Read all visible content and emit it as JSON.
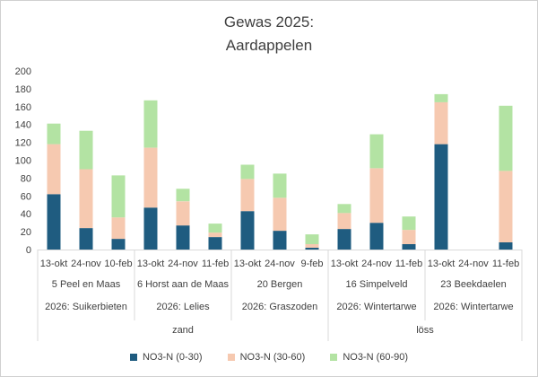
{
  "chart_data": {
    "type": "bar",
    "stacked": true,
    "title_lines": [
      "Gewas 2025:",
      "Aardappelen"
    ],
    "ylim": [
      0,
      200
    ],
    "yticks": [
      0,
      20,
      40,
      60,
      80,
      100,
      120,
      140,
      160,
      180,
      200
    ],
    "categories": [
      "13-okt",
      "24-nov",
      "10-feb",
      "13-okt",
      "24-nov",
      "11-feb",
      "13-okt",
      "24-nov",
      "9-feb",
      "13-okt",
      "24-nov",
      "11-feb",
      "13-okt",
      "24-nov",
      "11-feb"
    ],
    "groups": [
      {
        "location": "5 Peel en Maas",
        "crop": "2026: Suikerbieten"
      },
      {
        "location": "6 Horst aan de Maas",
        "crop": "2026: Lelies"
      },
      {
        "location": "20 Bergen",
        "crop": "2026: Graszoden"
      },
      {
        "location": "16 Simpelveld",
        "crop": "2026: Wintertarwe"
      },
      {
        "location": "23 Beekdaelen",
        "crop": "2026: Wintertarwe"
      }
    ],
    "soil_groups": [
      {
        "label": "zand",
        "group_count": 3
      },
      {
        "label": "löss",
        "group_count": 2
      }
    ],
    "series": [
      {
        "name": "NO3-N (0-30)",
        "color": "#1f5c80",
        "values": [
          62,
          24,
          12,
          47,
          27,
          14,
          43,
          21,
          2,
          23,
          30,
          6,
          118,
          0,
          8
        ]
      },
      {
        "name": "NO3-N (30-60)",
        "color": "#f6c9b0",
        "values": [
          56,
          66,
          24,
          67,
          27,
          5,
          36,
          37,
          4,
          18,
          61,
          16,
          47,
          0,
          80
        ]
      },
      {
        "name": "NO3-N (60-90)",
        "color": "#b3e3a3",
        "values": [
          23,
          43,
          47,
          53,
          14,
          10,
          16,
          27,
          11,
          10,
          38,
          15,
          9,
          0,
          73
        ]
      }
    ],
    "axis_color": "#d9d9d9",
    "text_color": "#404040"
  }
}
